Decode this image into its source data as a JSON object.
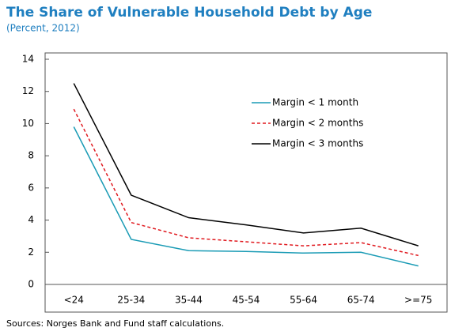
{
  "chart_data": {
    "type": "line",
    "title": "The Share of Vulnerable Household Debt by Age",
    "subtitle": "(Percent, 2012)",
    "source": "Sources: Norges Bank and Fund staff calculations.",
    "categories": [
      "<24",
      "25-34",
      "35-44",
      "45-54",
      "55-64",
      "65-74",
      ">=75"
    ],
    "series": [
      {
        "name": "Margin < 1 month",
        "color": "#1a9bb5",
        "dash": "solid",
        "values": [
          9.8,
          2.8,
          2.1,
          2.05,
          1.95,
          2.0,
          1.15
        ]
      },
      {
        "name": "Margin < 2 months",
        "color": "#e0191f",
        "dash": "dashed",
        "values": [
          10.9,
          3.85,
          2.9,
          2.65,
          2.4,
          2.6,
          1.8
        ]
      },
      {
        "name": "Margin < 3 months",
        "color": "#000000",
        "dash": "solid",
        "values": [
          12.5,
          5.55,
          4.15,
          3.7,
          3.2,
          3.5,
          2.4
        ]
      }
    ],
    "ylim": [
      0,
      14
    ],
    "yticks": [
      0,
      2,
      4,
      6,
      8,
      10,
      12,
      14
    ],
    "grid": false,
    "legend": "upper right"
  }
}
